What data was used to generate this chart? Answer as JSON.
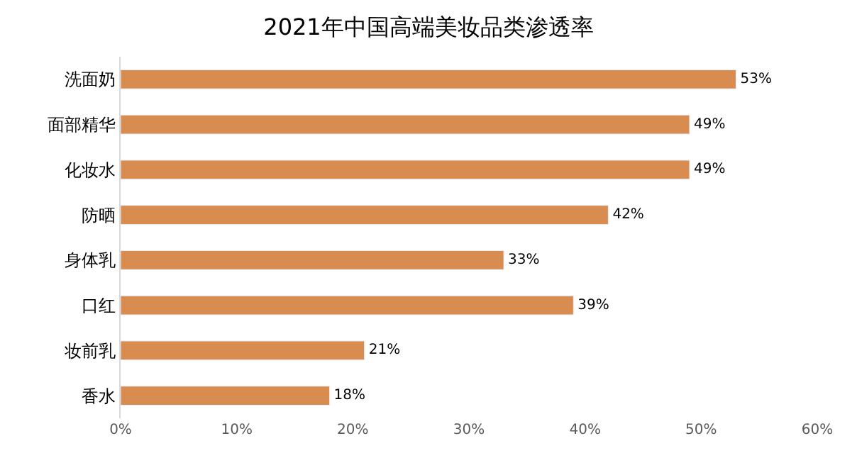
{
  "chart_data": {
    "type": "bar",
    "orientation": "horizontal",
    "title": "2021年中国高端美妆品类渗透率",
    "categories": [
      "洗面奶",
      "面部精华",
      "化妆水",
      "防晒",
      "身体乳",
      "口红",
      "妆前乳",
      "香水"
    ],
    "values": [
      53,
      49,
      49,
      42,
      33,
      39,
      21,
      18
    ],
    "value_labels": [
      "53%",
      "49%",
      "49%",
      "42%",
      "33%",
      "39%",
      "21%",
      "18%"
    ],
    "color": "#d98c4f",
    "xlim": [
      0,
      60
    ],
    "xticks": [
      {
        "value": 0,
        "label": "0%"
      },
      {
        "value": 10,
        "label": "10%"
      },
      {
        "value": 20,
        "label": "20%"
      },
      {
        "value": 30,
        "label": "30%"
      },
      {
        "value": 40,
        "label": "40%"
      },
      {
        "value": 50,
        "label": "50%"
      },
      {
        "value": 60,
        "label": "60%"
      }
    ],
    "legend": false
  }
}
